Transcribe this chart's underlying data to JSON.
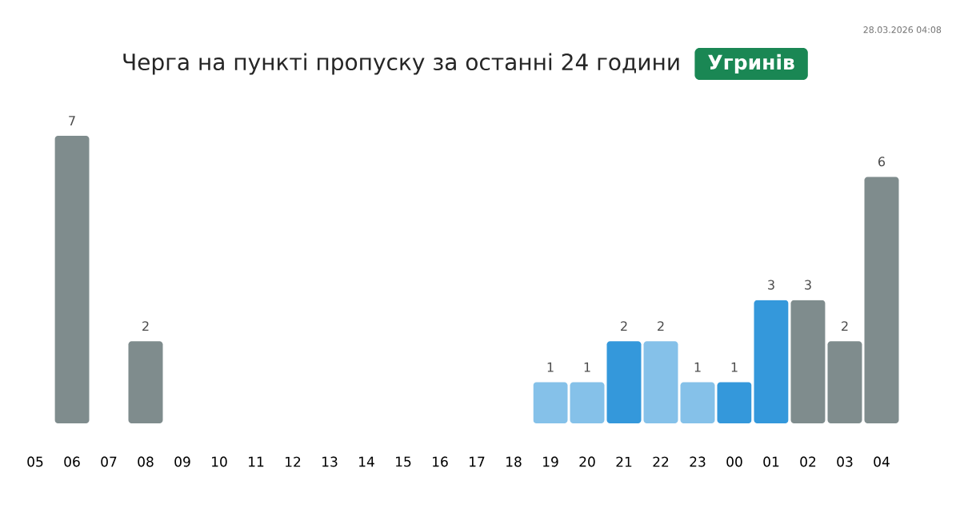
{
  "chart_data": {
    "type": "bar",
    "title": "Черга на пункті пропуску за останні 24 години",
    "subtitle": "Угринів",
    "annotations": [
      "28.03.2026 04:08"
    ],
    "categories": [
      "05",
      "06",
      "07",
      "08",
      "09",
      "10",
      "11",
      "12",
      "13",
      "14",
      "15",
      "16",
      "17",
      "18",
      "19",
      "20",
      "21",
      "22",
      "23",
      "00",
      "01",
      "02",
      "03",
      "04"
    ],
    "values": [
      null,
      7,
      null,
      2,
      null,
      null,
      null,
      null,
      null,
      null,
      null,
      null,
      null,
      null,
      1,
      1,
      2,
      2,
      1,
      1,
      3,
      3,
      2,
      6
    ],
    "colors": [
      "#7f8c8d",
      "#7f8c8d",
      "#7f8c8d",
      "#7f8c8d",
      "#7f8c8d",
      "#7f8c8d",
      "#7f8c8d",
      "#7f8c8d",
      "#7f8c8d",
      "#7f8c8d",
      "#7f8c8d",
      "#7f8c8d",
      "#7f8c8d",
      "#7f8c8d",
      "#85c1e9",
      "#85c1e9",
      "#3498db",
      "#85c1e9",
      "#85c1e9",
      "#3498db",
      "#3498db",
      "#7f8c8d",
      "#7f8c8d",
      "#7f8c8d"
    ],
    "data_labels": true
  }
}
